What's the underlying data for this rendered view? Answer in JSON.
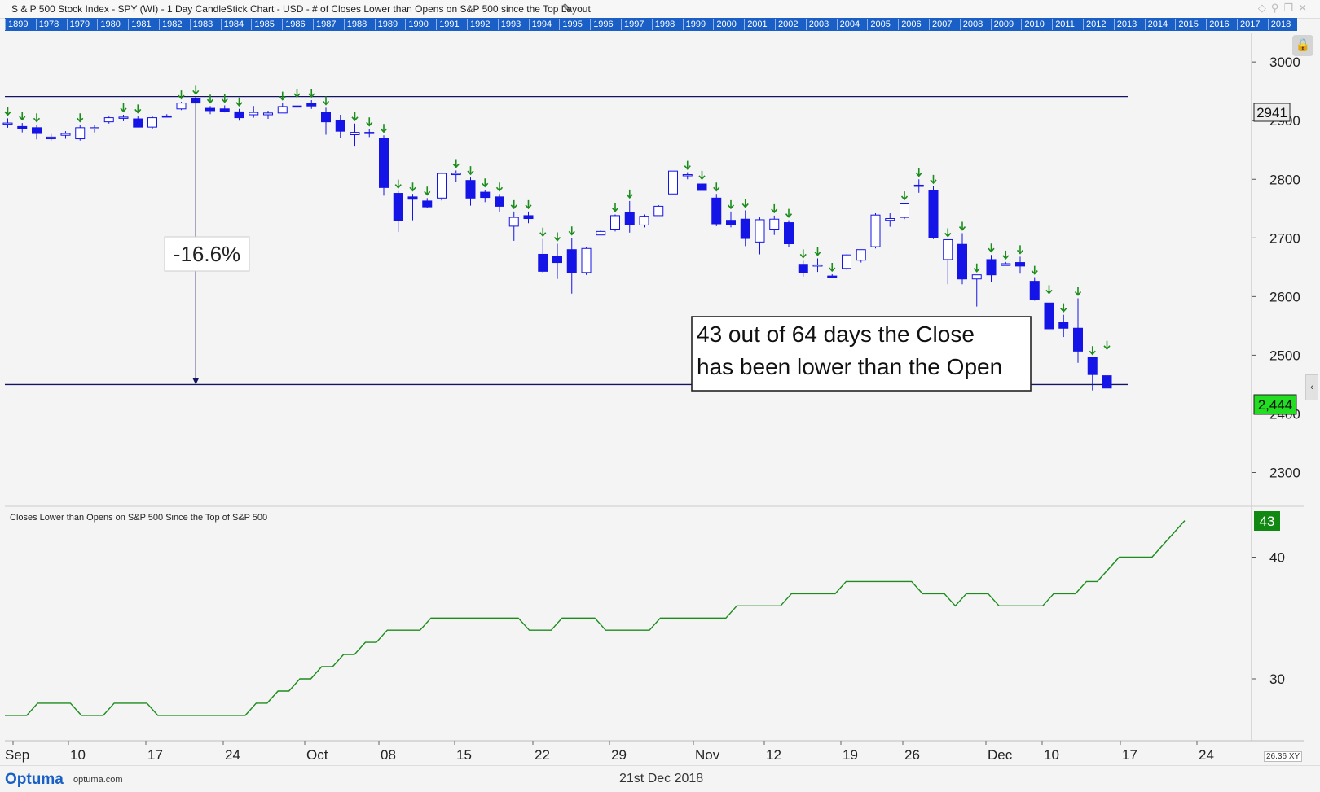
{
  "window": {
    "title": "S & P 500 Stock Index - SPY (WI) - 1 Day CandleStick Chart - USD - # of Closes Lower than Opens on S&P 500 since the Top Layout",
    "edit_icon": "pencil-icon",
    "controls_icons": [
      "diamond-icon",
      "pin-icon",
      "restore-icon",
      "close-icon"
    ]
  },
  "year_bar": [
    "1899",
    "1978",
    "1979",
    "1980",
    "1981",
    "1982",
    "1983",
    "1984",
    "1985",
    "1986",
    "1987",
    "1988",
    "1989",
    "1990",
    "1991",
    "1992",
    "1993",
    "1994",
    "1995",
    "1996",
    "1997",
    "1998",
    "1999",
    "2000",
    "2001",
    "2002",
    "2003",
    "2004",
    "2005",
    "2006",
    "2007",
    "2008",
    "2009",
    "2010",
    "2011",
    "2012",
    "2013",
    "2014",
    "2015",
    "2016",
    "2017",
    "2018"
  ],
  "colors": {
    "down_candle": "#1414e6",
    "up_candle": "#ffffff",
    "candle_outline": "#1414e6",
    "arrow": "#1c8c1c",
    "line": "#1c8c1c",
    "last_price_bg": "#22dd22",
    "count_badge_bg": "#118811",
    "hline": "#141464"
  },
  "chart_data": [
    {
      "type": "candlestick",
      "title": "",
      "x_tick_labels": [
        "Sep",
        "10",
        "17",
        "24",
        "Oct",
        "08",
        "15",
        "22",
        "29",
        "Nov",
        "12",
        "19",
        "26",
        "Dec",
        "10",
        "17",
        "24"
      ],
      "y_ticks": [
        2300,
        2400,
        2500,
        2600,
        2700,
        2800,
        2900,
        3000
      ],
      "ylim": [
        2270,
        3050
      ],
      "grid": false,
      "horizontal_lines": [
        2941,
        2450
      ],
      "annotations": {
        "drawdown": "-16.6%",
        "note_line1": "43 out of 64 days the Close",
        "note_line2": "has been lower than the Open"
      },
      "top_price_label": "2941",
      "last_price_label": "2,444",
      "ohlc": [
        {
          "o": 2896,
          "h": 2904,
          "l": 2888,
          "c": 2896
        },
        {
          "o": 2890,
          "h": 2896,
          "l": 2880,
          "c": 2886
        },
        {
          "o": 2888,
          "h": 2893,
          "l": 2868,
          "c": 2878
        },
        {
          "o": 2869,
          "h": 2877,
          "l": 2866,
          "c": 2872
        },
        {
          "o": 2875,
          "h": 2882,
          "l": 2869,
          "c": 2878
        },
        {
          "o": 2869,
          "h": 2893,
          "l": 2866,
          "c": 2888
        },
        {
          "o": 2888,
          "h": 2893,
          "l": 2880,
          "c": 2888
        },
        {
          "o": 2898,
          "h": 2907,
          "l": 2895,
          "c": 2905
        },
        {
          "o": 2905,
          "h": 2910,
          "l": 2899,
          "c": 2906
        },
        {
          "o": 2903,
          "h": 2908,
          "l": 2890,
          "c": 2889
        },
        {
          "o": 2889,
          "h": 2908,
          "l": 2886,
          "c": 2905
        },
        {
          "o": 2908,
          "h": 2911,
          "l": 2906,
          "c": 2907
        },
        {
          "o": 2920,
          "h": 2932,
          "l": 2918,
          "c": 2930
        },
        {
          "o": 2938,
          "h": 2940,
          "l": 2930,
          "c": 2930
        },
        {
          "o": 2921,
          "h": 2925,
          "l": 2911,
          "c": 2917
        },
        {
          "o": 2920,
          "h": 2926,
          "l": 2914,
          "c": 2915
        },
        {
          "o": 2915,
          "h": 2920,
          "l": 2900,
          "c": 2905
        },
        {
          "o": 2910,
          "h": 2925,
          "l": 2905,
          "c": 2914
        },
        {
          "o": 2910,
          "h": 2917,
          "l": 2903,
          "c": 2913
        },
        {
          "o": 2913,
          "h": 2930,
          "l": 2913,
          "c": 2924
        },
        {
          "o": 2925,
          "h": 2935,
          "l": 2915,
          "c": 2924
        },
        {
          "o": 2930,
          "h": 2935,
          "l": 2920,
          "c": 2925
        },
        {
          "o": 2914,
          "h": 2922,
          "l": 2876,
          "c": 2898
        },
        {
          "o": 2900,
          "h": 2910,
          "l": 2870,
          "c": 2882
        },
        {
          "o": 2876,
          "h": 2895,
          "l": 2857,
          "c": 2880
        },
        {
          "o": 2880,
          "h": 2886,
          "l": 2872,
          "c": 2880
        },
        {
          "o": 2870,
          "h": 2875,
          "l": 2772,
          "c": 2786
        },
        {
          "o": 2776,
          "h": 2780,
          "l": 2710,
          "c": 2730
        },
        {
          "o": 2770,
          "h": 2775,
          "l": 2730,
          "c": 2766
        },
        {
          "o": 2763,
          "h": 2768,
          "l": 2751,
          "c": 2753
        },
        {
          "o": 2768,
          "h": 2810,
          "l": 2764,
          "c": 2810
        },
        {
          "o": 2809,
          "h": 2815,
          "l": 2795,
          "c": 2810
        },
        {
          "o": 2798,
          "h": 2803,
          "l": 2755,
          "c": 2768
        },
        {
          "o": 2778,
          "h": 2782,
          "l": 2761,
          "c": 2769
        },
        {
          "o": 2770,
          "h": 2775,
          "l": 2745,
          "c": 2754
        },
        {
          "o": 2720,
          "h": 2745,
          "l": 2695,
          "c": 2735
        },
        {
          "o": 2738,
          "h": 2745,
          "l": 2725,
          "c": 2733
        },
        {
          "o": 2672,
          "h": 2698,
          "l": 2640,
          "c": 2643
        },
        {
          "o": 2668,
          "h": 2690,
          "l": 2630,
          "c": 2658
        },
        {
          "o": 2680,
          "h": 2700,
          "l": 2605,
          "c": 2641
        },
        {
          "o": 2641,
          "h": 2685,
          "l": 2637,
          "c": 2682
        },
        {
          "o": 2705,
          "h": 2713,
          "l": 2705,
          "c": 2711
        },
        {
          "o": 2715,
          "h": 2740,
          "l": 2711,
          "c": 2738
        },
        {
          "o": 2744,
          "h": 2763,
          "l": 2709,
          "c": 2723
        },
        {
          "o": 2722,
          "h": 2740,
          "l": 2718,
          "c": 2737
        },
        {
          "o": 2738,
          "h": 2756,
          "l": 2738,
          "c": 2754
        },
        {
          "o": 2775,
          "h": 2814,
          "l": 2775,
          "c": 2814
        },
        {
          "o": 2807,
          "h": 2812,
          "l": 2800,
          "c": 2808
        },
        {
          "o": 2792,
          "h": 2795,
          "l": 2775,
          "c": 2781
        },
        {
          "o": 2768,
          "h": 2775,
          "l": 2720,
          "c": 2724
        },
        {
          "o": 2730,
          "h": 2745,
          "l": 2718,
          "c": 2722
        },
        {
          "o": 2732,
          "h": 2747,
          "l": 2686,
          "c": 2699
        },
        {
          "o": 2693,
          "h": 2735,
          "l": 2672,
          "c": 2731
        },
        {
          "o": 2715,
          "h": 2738,
          "l": 2705,
          "c": 2732
        },
        {
          "o": 2726,
          "h": 2730,
          "l": 2685,
          "c": 2690
        },
        {
          "o": 2655,
          "h": 2661,
          "l": 2634,
          "c": 2641
        },
        {
          "o": 2652,
          "h": 2665,
          "l": 2642,
          "c": 2654
        },
        {
          "o": 2635,
          "h": 2638,
          "l": 2631,
          "c": 2634
        },
        {
          "o": 2648,
          "h": 2672,
          "l": 2646,
          "c": 2671
        },
        {
          "o": 2662,
          "h": 2680,
          "l": 2658,
          "c": 2680
        },
        {
          "o": 2685,
          "h": 2742,
          "l": 2682,
          "c": 2739
        },
        {
          "o": 2730,
          "h": 2742,
          "l": 2719,
          "c": 2733
        },
        {
          "o": 2735,
          "h": 2760,
          "l": 2732,
          "c": 2758
        },
        {
          "o": 2790,
          "h": 2800,
          "l": 2777,
          "c": 2789
        },
        {
          "o": 2781,
          "h": 2788,
          "l": 2698,
          "c": 2700
        },
        {
          "o": 2663,
          "h": 2697,
          "l": 2621,
          "c": 2697
        },
        {
          "o": 2689,
          "h": 2708,
          "l": 2621,
          "c": 2630
        },
        {
          "o": 2630,
          "h": 2637,
          "l": 2583,
          "c": 2637
        },
        {
          "o": 2663,
          "h": 2671,
          "l": 2624,
          "c": 2637
        },
        {
          "o": 2653,
          "h": 2659,
          "l": 2653,
          "c": 2656
        },
        {
          "o": 2658,
          "h": 2668,
          "l": 2639,
          "c": 2652
        },
        {
          "o": 2626,
          "h": 2633,
          "l": 2593,
          "c": 2595
        },
        {
          "o": 2589,
          "h": 2600,
          "l": 2532,
          "c": 2545
        },
        {
          "o": 2556,
          "h": 2569,
          "l": 2531,
          "c": 2546
        },
        {
          "o": 2546,
          "h": 2597,
          "l": 2487,
          "c": 2507
        },
        {
          "o": 2496,
          "h": 2496,
          "l": 2440,
          "c": 2467
        },
        {
          "o": 2465,
          "h": 2505,
          "l": 2433,
          "c": 2444
        }
      ],
      "down_arrow_indices": [
        0,
        1,
        2,
        5,
        8,
        9,
        12,
        13,
        14,
        15,
        16,
        19,
        20,
        21,
        22,
        24,
        25,
        26,
        27,
        28,
        29,
        31,
        32,
        33,
        34,
        35,
        36,
        37,
        38,
        39,
        42,
        43,
        47,
        48,
        49,
        50,
        51,
        53,
        54,
        55,
        56,
        57,
        62,
        63,
        64,
        65,
        66,
        67,
        68,
        69,
        70,
        71,
        72,
        73,
        74,
        75,
        76
      ]
    },
    {
      "type": "line",
      "title": "Closes Lower than Opens on S&P 500 Since the Top of S&P 500",
      "y_ticks": [
        30,
        40
      ],
      "ylim": [
        25,
        44
      ],
      "last_value_label": "43",
      "series": [
        {
          "values": [
            27,
            27,
            27,
            28,
            28,
            28,
            28,
            27,
            27,
            27,
            28,
            28,
            28,
            28,
            27,
            27,
            27,
            27,
            27,
            27,
            27,
            27,
            27,
            28,
            28,
            29,
            29,
            30,
            30,
            31,
            31,
            32,
            32,
            33,
            33,
            34,
            34,
            34,
            34,
            35,
            35,
            35,
            35,
            35,
            35,
            35,
            35,
            35,
            34,
            34,
            34,
            35,
            35,
            35,
            35,
            34,
            34,
            34,
            34,
            34,
            35,
            35,
            35,
            35,
            35,
            35,
            35,
            36,
            36,
            36,
            36,
            36,
            37,
            37,
            37,
            37,
            37,
            38,
            38,
            38,
            38,
            38,
            38,
            38,
            37,
            37,
            37,
            36,
            37,
            37,
            37,
            36,
            36,
            36,
            36,
            36,
            37,
            37,
            37,
            38,
            38,
            39,
            40,
            40,
            40,
            40,
            41,
            42,
            43
          ]
        }
      ]
    }
  ],
  "footer": {
    "brand": "Optuma",
    "url": "optuma.com",
    "date": "21st Dec 2018",
    "zoom": "26.36",
    "xy_label": "XY"
  }
}
